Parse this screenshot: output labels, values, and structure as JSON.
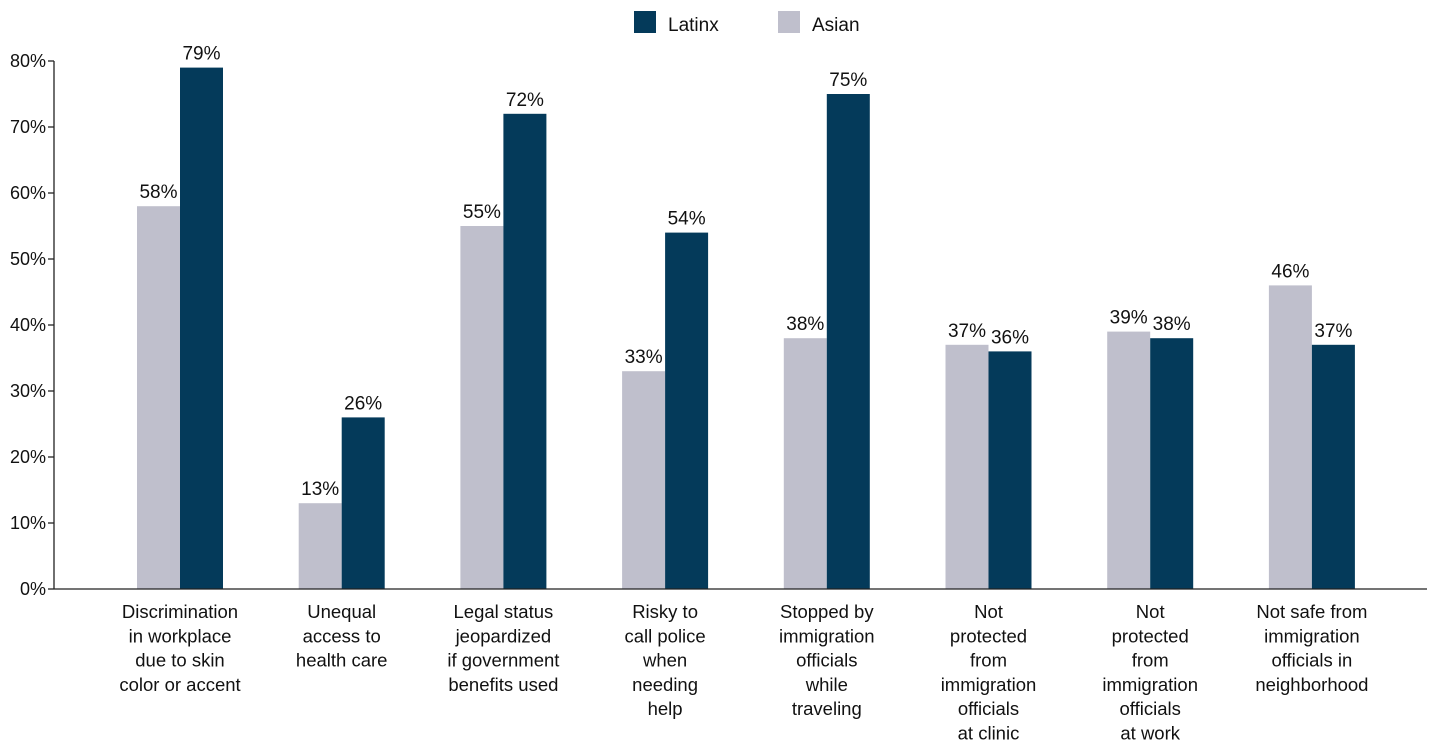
{
  "chart_data": {
    "type": "bar",
    "title": "",
    "xlabel": "",
    "ylabel": "",
    "ylim": [
      0,
      80
    ],
    "yticks": [
      0,
      10,
      20,
      30,
      40,
      50,
      60,
      70,
      80
    ],
    "ytick_suffix": "%",
    "grid": false,
    "legend_position": "top-center",
    "categories": [
      [
        "Discrimination",
        "in workplace",
        "due to skin",
        "color or accent"
      ],
      [
        "Unequal",
        "access to",
        "health care"
      ],
      [
        "Legal status",
        "jeopardized",
        "if government",
        "benefits used"
      ],
      [
        "Risky to",
        "call police",
        "when",
        "needing",
        "help"
      ],
      [
        "Stopped by",
        "immigration",
        "officials",
        "while",
        "traveling"
      ],
      [
        "Not",
        "protected",
        "from",
        "immigration",
        "officials",
        "at clinic"
      ],
      [
        "Not",
        "protected",
        "from",
        "immigration",
        "officials",
        "at work"
      ],
      [
        "Not safe from",
        "immigration",
        "officials in",
        "neighborhood"
      ]
    ],
    "series": [
      {
        "name": "Asian",
        "color": "#bfbfcc",
        "values": [
          58,
          13,
          55,
          33,
          38,
          37,
          39,
          46
        ]
      },
      {
        "name": "Latinx",
        "color": "#043a5a",
        "values": [
          79,
          26,
          72,
          54,
          75,
          36,
          38,
          37
        ]
      }
    ],
    "legend_order": [
      "Latinx",
      "Asian"
    ],
    "value_suffix": "%"
  }
}
